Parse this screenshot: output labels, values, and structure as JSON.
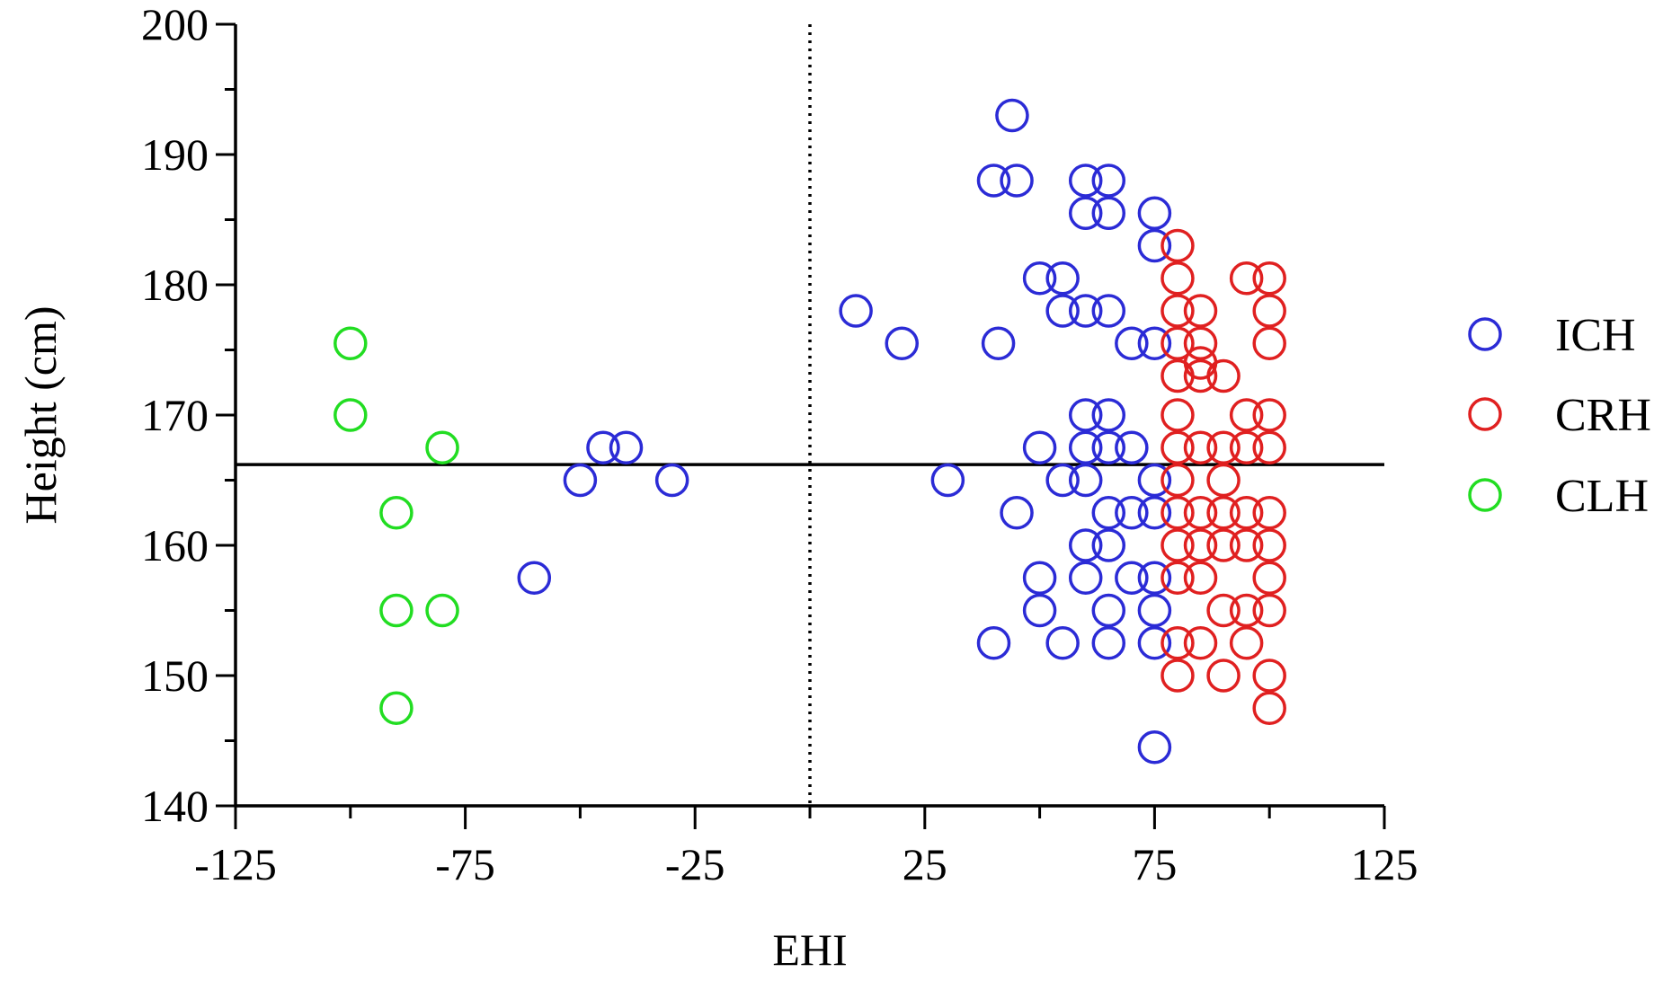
{
  "chart_data": {
    "type": "scatter",
    "title": "",
    "xlabel": "EHI",
    "ylabel": "Height (cm)",
    "xlim": [
      -125,
      125
    ],
    "ylim": [
      140,
      200
    ],
    "x_ticks": [
      -125,
      -75,
      -25,
      25,
      75,
      125
    ],
    "x_tick_labels": [
      "-125",
      "-75",
      "-25",
      "25",
      "75",
      "125"
    ],
    "y_ticks": [
      140,
      150,
      160,
      170,
      180,
      190,
      200
    ],
    "y_tick_labels": [
      "140",
      "150",
      "160",
      "170",
      "180",
      "190",
      "200"
    ],
    "reference_lines": {
      "vertical_x": 0,
      "horizontal_y": 166.2
    },
    "legend_position": "right",
    "series": [
      {
        "name": "ICH",
        "color": "#2b2bd6",
        "points": [
          [
            44,
            193
          ],
          [
            40,
            188
          ],
          [
            45,
            188
          ],
          [
            60,
            188
          ],
          [
            65,
            188
          ],
          [
            60,
            185.5
          ],
          [
            65,
            185.5
          ],
          [
            75,
            185.5
          ],
          [
            75,
            183
          ],
          [
            50,
            180.5
          ],
          [
            55,
            180.5
          ],
          [
            10,
            178
          ],
          [
            55,
            178
          ],
          [
            60,
            178
          ],
          [
            65,
            178
          ],
          [
            20,
            175.5
          ],
          [
            41,
            175.5
          ],
          [
            70,
            175.5
          ],
          [
            75,
            175.5
          ],
          [
            60,
            170
          ],
          [
            65,
            170
          ],
          [
            -45,
            167.5
          ],
          [
            -40,
            167.5
          ],
          [
            50,
            167.5
          ],
          [
            60,
            167.5
          ],
          [
            65,
            167.5
          ],
          [
            70,
            167.5
          ],
          [
            -50,
            165
          ],
          [
            -30,
            165
          ],
          [
            30,
            165
          ],
          [
            55,
            165
          ],
          [
            60,
            165
          ],
          [
            75,
            165
          ],
          [
            45,
            162.5
          ],
          [
            65,
            162.5
          ],
          [
            70,
            162.5
          ],
          [
            75,
            162.5
          ],
          [
            60,
            160
          ],
          [
            65,
            160
          ],
          [
            -60,
            157.5
          ],
          [
            50,
            157.5
          ],
          [
            60,
            157.5
          ],
          [
            70,
            157.5
          ],
          [
            75,
            157.5
          ],
          [
            50,
            155
          ],
          [
            65,
            155
          ],
          [
            75,
            155
          ],
          [
            40,
            152.5
          ],
          [
            55,
            152.5
          ],
          [
            65,
            152.5
          ],
          [
            75,
            152.5
          ],
          [
            75,
            144.5
          ]
        ]
      },
      {
        "name": "CRH",
        "color": "#e02020",
        "points": [
          [
            80,
            183
          ],
          [
            80,
            180.5
          ],
          [
            95,
            180.5
          ],
          [
            100,
            180.5
          ],
          [
            80,
            178
          ],
          [
            85,
            178
          ],
          [
            100,
            178
          ],
          [
            80,
            175.5
          ],
          [
            85,
            175.5
          ],
          [
            100,
            175.5
          ],
          [
            85,
            174
          ],
          [
            85,
            173
          ],
          [
            80,
            173
          ],
          [
            90,
            173
          ],
          [
            80,
            170
          ],
          [
            95,
            170
          ],
          [
            100,
            170
          ],
          [
            80,
            167.5
          ],
          [
            85,
            167.5
          ],
          [
            90,
            167.5
          ],
          [
            95,
            167.5
          ],
          [
            100,
            167.5
          ],
          [
            80,
            165
          ],
          [
            90,
            165
          ],
          [
            80,
            162.5
          ],
          [
            85,
            162.5
          ],
          [
            90,
            162.5
          ],
          [
            95,
            162.5
          ],
          [
            100,
            162.5
          ],
          [
            80,
            160
          ],
          [
            85,
            160
          ],
          [
            90,
            160
          ],
          [
            95,
            160
          ],
          [
            100,
            160
          ],
          [
            80,
            157.5
          ],
          [
            85,
            157.5
          ],
          [
            100,
            157.5
          ],
          [
            90,
            155
          ],
          [
            95,
            155
          ],
          [
            100,
            155
          ],
          [
            80,
            152.5
          ],
          [
            85,
            152.5
          ],
          [
            95,
            152.5
          ],
          [
            80,
            150
          ],
          [
            90,
            150
          ],
          [
            100,
            150
          ],
          [
            100,
            147.5
          ]
        ]
      },
      {
        "name": "CLH",
        "color": "#22dd22",
        "points": [
          [
            -100,
            175.5
          ],
          [
            -100,
            170
          ],
          [
            -80,
            167.5
          ],
          [
            -90,
            162.5
          ],
          [
            -90,
            155
          ],
          [
            -80,
            155
          ],
          [
            -90,
            147.5
          ]
        ]
      }
    ]
  }
}
